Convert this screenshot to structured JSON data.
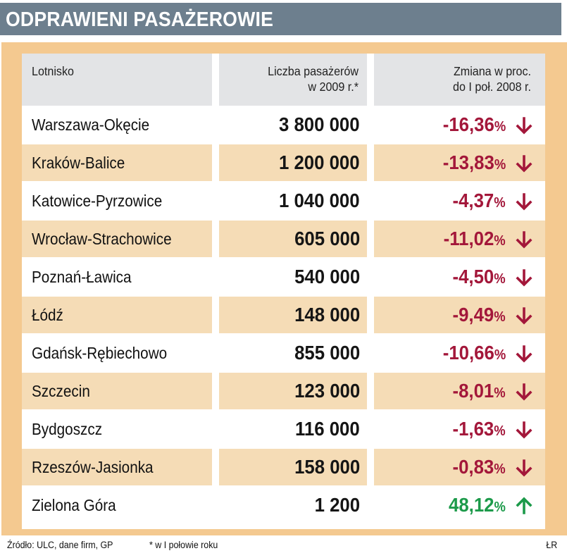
{
  "title": "ODPRAWIENI PASAŻEROWIE",
  "colors": {
    "title_bar": "#6d7f8e",
    "panel": "#f4c990",
    "row_alt": "#f5dcb6",
    "header": "#e3e4e6",
    "negative": "#a3173a",
    "positive": "#1c9a4a"
  },
  "chart_data": {
    "type": "table",
    "columns": [
      "Lotnisko",
      "Liczba pasażerów w 2009 r.*",
      "Zmiana w proc. do I poł. 2008 r."
    ],
    "header": {
      "airport": "Lotnisko",
      "pax_line1": "Liczba pasażerów",
      "pax_line2": "w 2009 r.*",
      "change_line1": "Zmiana w proc.",
      "change_line2": "do I poł. 2008 r."
    },
    "rows": [
      {
        "airport": "Warszawa-Okęcie",
        "passengers": "3 800 000",
        "change": "-16,36",
        "pct": "%",
        "direction": "down"
      },
      {
        "airport": "Kraków-Balice",
        "passengers": "1 200 000",
        "change": "-13,83",
        "pct": "%",
        "direction": "down"
      },
      {
        "airport": "Katowice-Pyrzowice",
        "passengers": "1 040 000",
        "change": "-4,37",
        "pct": "%",
        "direction": "down"
      },
      {
        "airport": "Wrocław-Strachowice",
        "passengers": "605 000",
        "change": "-11,02",
        "pct": "%",
        "direction": "down"
      },
      {
        "airport": "Poznań-Ławica",
        "passengers": "540 000",
        "change": "-4,50",
        "pct": "%",
        "direction": "down"
      },
      {
        "airport": "Łódź",
        "passengers": "148 000",
        "change": "-9,49",
        "pct": "%",
        "direction": "down"
      },
      {
        "airport": "Gdańsk-Rębiechowo",
        "passengers": "855 000",
        "change": "-10,66",
        "pct": "%",
        "direction": "down"
      },
      {
        "airport": "Szczecin",
        "passengers": "123 000",
        "change": "-8,01",
        "pct": "%",
        "direction": "down"
      },
      {
        "airport": "Bydgoszcz",
        "passengers": "116 000",
        "change": "-1,63",
        "pct": "%",
        "direction": "down"
      },
      {
        "airport": "Rzeszów-Jasionka",
        "passengers": "158 000",
        "change": "-0,83",
        "pct": "%",
        "direction": "down"
      },
      {
        "airport": "Zielona Góra",
        "passengers": "1 200",
        "change": "48,12",
        "pct": "%",
        "direction": "up"
      }
    ]
  },
  "footer": {
    "source": "Źródło: ULC, dane firm, GP",
    "note": "* w I połowie roku",
    "credit": "ŁR"
  }
}
